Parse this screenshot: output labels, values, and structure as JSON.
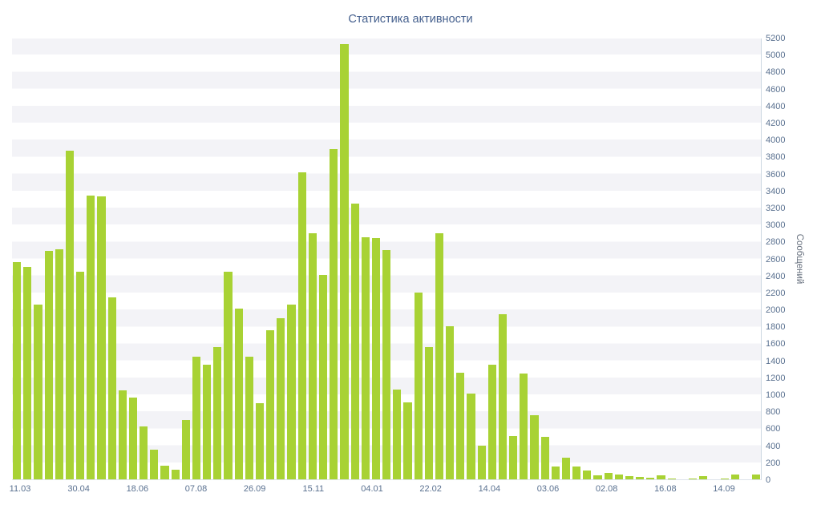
{
  "page": {
    "background": "#ffffff"
  },
  "chart_data": {
    "type": "bar",
    "title": "Статистика активности",
    "xlabel": "",
    "ylabel": "Сообщений",
    "ylim": [
      0,
      5200
    ],
    "ytick_step": 200,
    "grid": "alternating-horizontal-bands",
    "legend": "none",
    "x_tick_labels": [
      "11.03",
      "30.04",
      "18.06",
      "07.08",
      "26.09",
      "15.11",
      "04.01",
      "22.02",
      "14.04",
      "03.06",
      "02.08",
      "16.08",
      "14.09"
    ],
    "y_tick_labels": [
      "0",
      "200",
      "400",
      "600",
      "800",
      "1000",
      "1200",
      "1400",
      "1600",
      "1800",
      "2000",
      "2200",
      "2400",
      "2600",
      "2800",
      "3000",
      "3200",
      "3400",
      "3600",
      "3800",
      "4000",
      "4200",
      "4400",
      "4600",
      "4800",
      "5000",
      "5200"
    ],
    "series": [
      {
        "name": "Сообщений",
        "values": [
          2560,
          2510,
          2060,
          2690,
          2710,
          3880,
          2450,
          3350,
          3340,
          2150,
          1050,
          960,
          620,
          350,
          160,
          110,
          700,
          1450,
          1350,
          1560,
          2450,
          2010,
          1450,
          900,
          1760,
          1900,
          2060,
          3620,
          2900,
          2410,
          3900,
          5130,
          3250,
          2860,
          2850,
          2700,
          1060,
          910,
          2200,
          1560,
          2900,
          1810,
          1260,
          1010,
          400,
          1350,
          1950,
          510,
          1250,
          760,
          500,
          150,
          260,
          150,
          100,
          50,
          80,
          60,
          40,
          30,
          20,
          50,
          10,
          0,
          10,
          40,
          0,
          10,
          60,
          0,
          55
        ]
      }
    ],
    "colors": {
      "bar": "#a8d234",
      "band": "#f3f3f7",
      "axis_text": "#5a7190",
      "title_text": "#45608e",
      "axis_line": "#cdd7e2",
      "background": "#ffffff"
    }
  }
}
